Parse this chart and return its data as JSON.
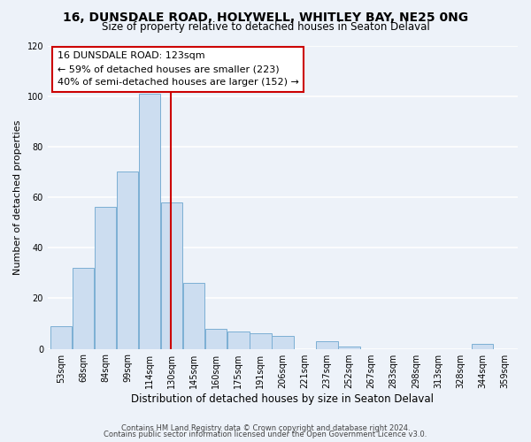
{
  "title": "16, DUNSDALE ROAD, HOLYWELL, WHITLEY BAY, NE25 0NG",
  "subtitle": "Size of property relative to detached houses in Seaton Delaval",
  "xlabel": "Distribution of detached houses by size in Seaton Delaval",
  "ylabel": "Number of detached properties",
  "bar_labels": [
    "53sqm",
    "68sqm",
    "84sqm",
    "99sqm",
    "114sqm",
    "130sqm",
    "145sqm",
    "160sqm",
    "175sqm",
    "191sqm",
    "206sqm",
    "221sqm",
    "237sqm",
    "252sqm",
    "267sqm",
    "283sqm",
    "298sqm",
    "313sqm",
    "328sqm",
    "344sqm",
    "359sqm"
  ],
  "bar_values": [
    9,
    32,
    56,
    70,
    101,
    58,
    26,
    8,
    7,
    6,
    5,
    0,
    3,
    1,
    0,
    0,
    0,
    0,
    0,
    2,
    0
  ],
  "bar_color": "#ccddf0",
  "bar_edge_color": "#7bafd4",
  "vline_color": "#cc0000",
  "vline_pos": 5.0,
  "annotation_title": "16 DUNSDALE ROAD: 123sqm",
  "annotation_line1": "← 59% of detached houses are smaller (223)",
  "annotation_line2": "40% of semi-detached houses are larger (152) →",
  "annotation_box_facecolor": "#ffffff",
  "annotation_box_edgecolor": "#cc0000",
  "ylim": [
    0,
    120
  ],
  "yticks": [
    0,
    20,
    40,
    60,
    80,
    100,
    120
  ],
  "footnote1": "Contains HM Land Registry data © Crown copyright and database right 2024.",
  "footnote2": "Contains public sector information licensed under the Open Government Licence v3.0.",
  "bg_color": "#edf2f9",
  "plot_bg_color": "#edf2f9",
  "grid_color": "#ffffff",
  "title_fontsize": 10,
  "subtitle_fontsize": 8.5,
  "ylabel_fontsize": 8,
  "xlabel_fontsize": 8.5,
  "tick_fontsize": 7,
  "footnote_fontsize": 6,
  "ann_fontsize": 8
}
